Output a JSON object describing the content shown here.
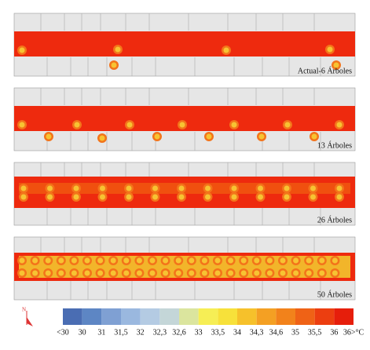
{
  "panels": [
    {
      "label": "Actual-6 Árboles"
    },
    {
      "label": "13 Árboles"
    },
    {
      "label": "26 Árboles"
    },
    {
      "label": "50 Árboles"
    }
  ],
  "legend": {
    "labels": [
      "<30",
      "30",
      "31",
      "31,5",
      "32",
      "32,3",
      "32,6",
      "33",
      "33,5",
      "34",
      "34,3",
      "34,6",
      "35",
      "35,5",
      "36",
      "36>°C"
    ]
  }
}
